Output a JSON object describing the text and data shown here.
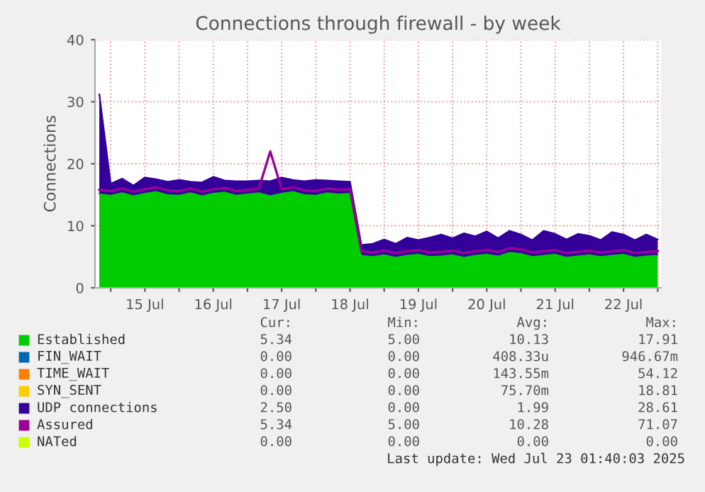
{
  "chart_data": {
    "type": "area",
    "title": "Connections through firewall - by week",
    "ylabel": "Connections",
    "x": [
      "2025-07-14T20:00",
      "2025-07-15T00:00",
      "2025-07-15T04:00",
      "2025-07-15T08:00",
      "2025-07-15T12:00",
      "2025-07-15T16:00",
      "2025-07-15T20:00",
      "2025-07-16T00:00",
      "2025-07-16T04:00",
      "2025-07-16T08:00",
      "2025-07-16T12:00",
      "2025-07-16T16:00",
      "2025-07-16T20:00",
      "2025-07-17T00:00",
      "2025-07-17T04:00",
      "2025-07-17T08:00",
      "2025-07-17T12:00",
      "2025-07-17T16:00",
      "2025-07-17T20:00",
      "2025-07-18T00:00",
      "2025-07-18T04:00",
      "2025-07-18T08:00",
      "2025-07-18T12:00",
      "2025-07-18T16:00",
      "2025-07-18T20:00",
      "2025-07-19T00:00",
      "2025-07-19T04:00",
      "2025-07-19T08:00",
      "2025-07-19T12:00",
      "2025-07-19T16:00",
      "2025-07-19T20:00",
      "2025-07-20T00:00",
      "2025-07-20T04:00",
      "2025-07-20T08:00",
      "2025-07-20T12:00",
      "2025-07-20T16:00",
      "2025-07-20T20:00",
      "2025-07-21T00:00",
      "2025-07-21T04:00",
      "2025-07-21T08:00",
      "2025-07-21T12:00",
      "2025-07-21T16:00",
      "2025-07-21T20:00",
      "2025-07-22T00:00",
      "2025-07-22T04:00",
      "2025-07-22T08:00",
      "2025-07-22T12:00",
      "2025-07-22T16:00",
      "2025-07-22T20:00",
      "2025-07-23T00:00"
    ],
    "stacked": true,
    "series": [
      {
        "name": "Established",
        "color": "#00cc00",
        "values": [
          15.2,
          15.0,
          15.4,
          14.9,
          15.3,
          15.6,
          15.1,
          15.0,
          15.4,
          14.9,
          15.3,
          15.5,
          15.0,
          15.2,
          15.4,
          14.9,
          15.3,
          15.6,
          15.1,
          15.0,
          15.4,
          15.2,
          15.3,
          5.3,
          5.1,
          5.4,
          5.0,
          5.3,
          5.5,
          5.1,
          5.2,
          5.4,
          5.0,
          5.3,
          5.5,
          5.2,
          5.8,
          5.6,
          5.1,
          5.3,
          5.5,
          5.0,
          5.2,
          5.4,
          5.1,
          5.3,
          5.5,
          5.0,
          5.2,
          5.3
        ]
      },
      {
        "name": "FIN_WAIT",
        "type": "line",
        "color": "#0066b3",
        "values": [
          null,
          null,
          null,
          null,
          null,
          null,
          null,
          null,
          null,
          null,
          null,
          null,
          null,
          null,
          null,
          null,
          null,
          null,
          null,
          null,
          null,
          null,
          null,
          null,
          null,
          null,
          null,
          null,
          null,
          null,
          null,
          null,
          null,
          null,
          null,
          null,
          null,
          null,
          null,
          null,
          null,
          null,
          null,
          null,
          null,
          null,
          null,
          null,
          null,
          null
        ]
      },
      {
        "name": "TIME_WAIT",
        "type": "line",
        "color": "#ff8000",
        "values": [
          null,
          null,
          null,
          null,
          null,
          null,
          null,
          null,
          null,
          null,
          null,
          null,
          null,
          null,
          null,
          null,
          null,
          null,
          null,
          null,
          null,
          null,
          null,
          null,
          null,
          null,
          null,
          null,
          null,
          null,
          null,
          null,
          null,
          null,
          null,
          null,
          null,
          null,
          null,
          null,
          null,
          null,
          null,
          null,
          null,
          null,
          null,
          null,
          null,
          null
        ]
      },
      {
        "name": "SYN_SENT",
        "type": "line",
        "color": "#ffcc00",
        "values": [
          null,
          null,
          null,
          null,
          null,
          null,
          null,
          null,
          null,
          null,
          null,
          null,
          null,
          null,
          null,
          null,
          null,
          null,
          null,
          null,
          null,
          null,
          null,
          null,
          null,
          null,
          null,
          null,
          null,
          null,
          null,
          null,
          null,
          null,
          null,
          null,
          null,
          null,
          null,
          null,
          null,
          null,
          null,
          null,
          null,
          null,
          null,
          null,
          null,
          null
        ]
      },
      {
        "name": "UDP connections",
        "color": "#330099",
        "values": [
          16.0,
          1.8,
          2.2,
          1.6,
          2.5,
          1.9,
          2.0,
          2.4,
          1.7,
          2.1,
          2.6,
          1.8,
          2.2,
          2.0,
          1.9,
          2.3,
          2.5,
          1.8,
          2.1,
          2.4,
          1.9,
          2.0,
          1.8,
          1.6,
          2.0,
          2.4,
          2.1,
          2.8,
          2.2,
          3.0,
          3.4,
          2.6,
          3.8,
          3.0,
          3.6,
          2.8,
          3.4,
          3.0,
          2.6,
          3.9,
          3.2,
          2.8,
          3.5,
          3.0,
          2.6,
          3.7,
          3.1,
          2.7,
          3.4,
          2.5
        ]
      },
      {
        "name": "Assured",
        "type": "line",
        "color": "#990099",
        "values": [
          15.8,
          15.6,
          16.0,
          15.5,
          15.9,
          16.2,
          15.7,
          15.6,
          16.0,
          15.5,
          15.9,
          16.1,
          15.6,
          15.8,
          16.0,
          22.0,
          15.9,
          16.2,
          15.7,
          15.6,
          16.0,
          15.8,
          15.9,
          5.9,
          5.7,
          6.0,
          5.6,
          5.9,
          6.1,
          5.7,
          5.8,
          6.0,
          5.6,
          5.9,
          6.1,
          5.8,
          6.4,
          6.2,
          5.7,
          5.9,
          6.1,
          5.6,
          5.8,
          6.0,
          5.7,
          5.9,
          6.1,
          5.6,
          5.8,
          5.9
        ]
      },
      {
        "name": "NATed",
        "type": "line",
        "color": "#ccff00",
        "values": [
          null,
          null,
          null,
          null,
          null,
          null,
          null,
          null,
          null,
          null,
          null,
          null,
          null,
          null,
          null,
          null,
          null,
          null,
          null,
          null,
          null,
          null,
          null,
          null,
          null,
          null,
          null,
          null,
          null,
          null,
          null,
          null,
          null,
          null,
          null,
          null,
          null,
          null,
          null,
          null,
          null,
          null,
          null,
          null,
          null,
          null,
          null,
          null,
          null,
          null
        ]
      }
    ],
    "xlim": [
      "2025-07-14T18:30",
      "2025-07-23T01:10"
    ],
    "xticks": [
      {
        "value": "2025-07-15T00:00",
        "label": null
      },
      {
        "value": "2025-07-15T12:00",
        "label": "15 Jul"
      },
      {
        "value": "2025-07-16T00:00",
        "label": null
      },
      {
        "value": "2025-07-16T12:00",
        "label": "16 Jul"
      },
      {
        "value": "2025-07-17T00:00",
        "label": null
      },
      {
        "value": "2025-07-17T12:00",
        "label": "17 Jul"
      },
      {
        "value": "2025-07-18T00:00",
        "label": null
      },
      {
        "value": "2025-07-18T12:00",
        "label": "18 Jul"
      },
      {
        "value": "2025-07-19T00:00",
        "label": null
      },
      {
        "value": "2025-07-19T12:00",
        "label": "19 Jul"
      },
      {
        "value": "2025-07-20T00:00",
        "label": null
      },
      {
        "value": "2025-07-20T12:00",
        "label": "20 Jul"
      },
      {
        "value": "2025-07-21T00:00",
        "label": null
      },
      {
        "value": "2025-07-21T12:00",
        "label": "21 Jul"
      },
      {
        "value": "2025-07-22T00:00",
        "label": null
      },
      {
        "value": "2025-07-22T12:00",
        "label": "22 Jul"
      },
      {
        "value": "2025-07-23T00:00",
        "label": null
      }
    ],
    "ylim": [
      0,
      40
    ],
    "yticks": [
      0,
      10,
      20,
      30,
      40
    ],
    "grid": true,
    "legend": "bottom",
    "annotations": [
      "Cur:",
      "Min:",
      "Avg:",
      "Max:",
      "5.34",
      "5.00",
      "10.13",
      "17.91",
      "0.00",
      "0.00",
      "408.33u",
      "946.67m",
      "0.00",
      "0.00",
      "143.55m",
      "54.12",
      "0.00",
      "0.00",
      "75.70m",
      "18.81",
      "2.50",
      "0.00",
      "1.99",
      "28.61",
      "5.34",
      "5.00",
      "10.28",
      "71.07",
      "0.00",
      "0.00",
      "0.00",
      "0.00",
      "Last update: Wed Jul 23 01:40:03 2025"
    ]
  }
}
